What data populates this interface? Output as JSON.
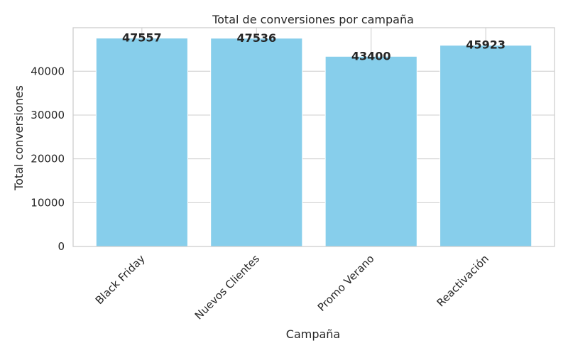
{
  "chart_data": {
    "type": "bar",
    "title": "Total de conversiones por campaña",
    "xlabel": "Campaña",
    "ylabel": "Total conversiones",
    "categories": [
      "Black Friday",
      "Nuevos Clientes",
      "Promo Verano",
      "Reactivación"
    ],
    "values": [
      47557,
      47536,
      43400,
      45923
    ],
    "data_labels": [
      "47557",
      "47536",
      "43400",
      "45923"
    ],
    "ylim": [
      0,
      49934
    ],
    "yticks": [
      0,
      10000,
      20000,
      30000,
      40000
    ],
    "ytick_labels": [
      "0",
      "10000",
      "20000",
      "30000",
      "40000"
    ],
    "grid": true,
    "legend": "none",
    "colors": {
      "bar": "#87ceeb",
      "grid": "#cccccc",
      "text": "#262626"
    }
  }
}
